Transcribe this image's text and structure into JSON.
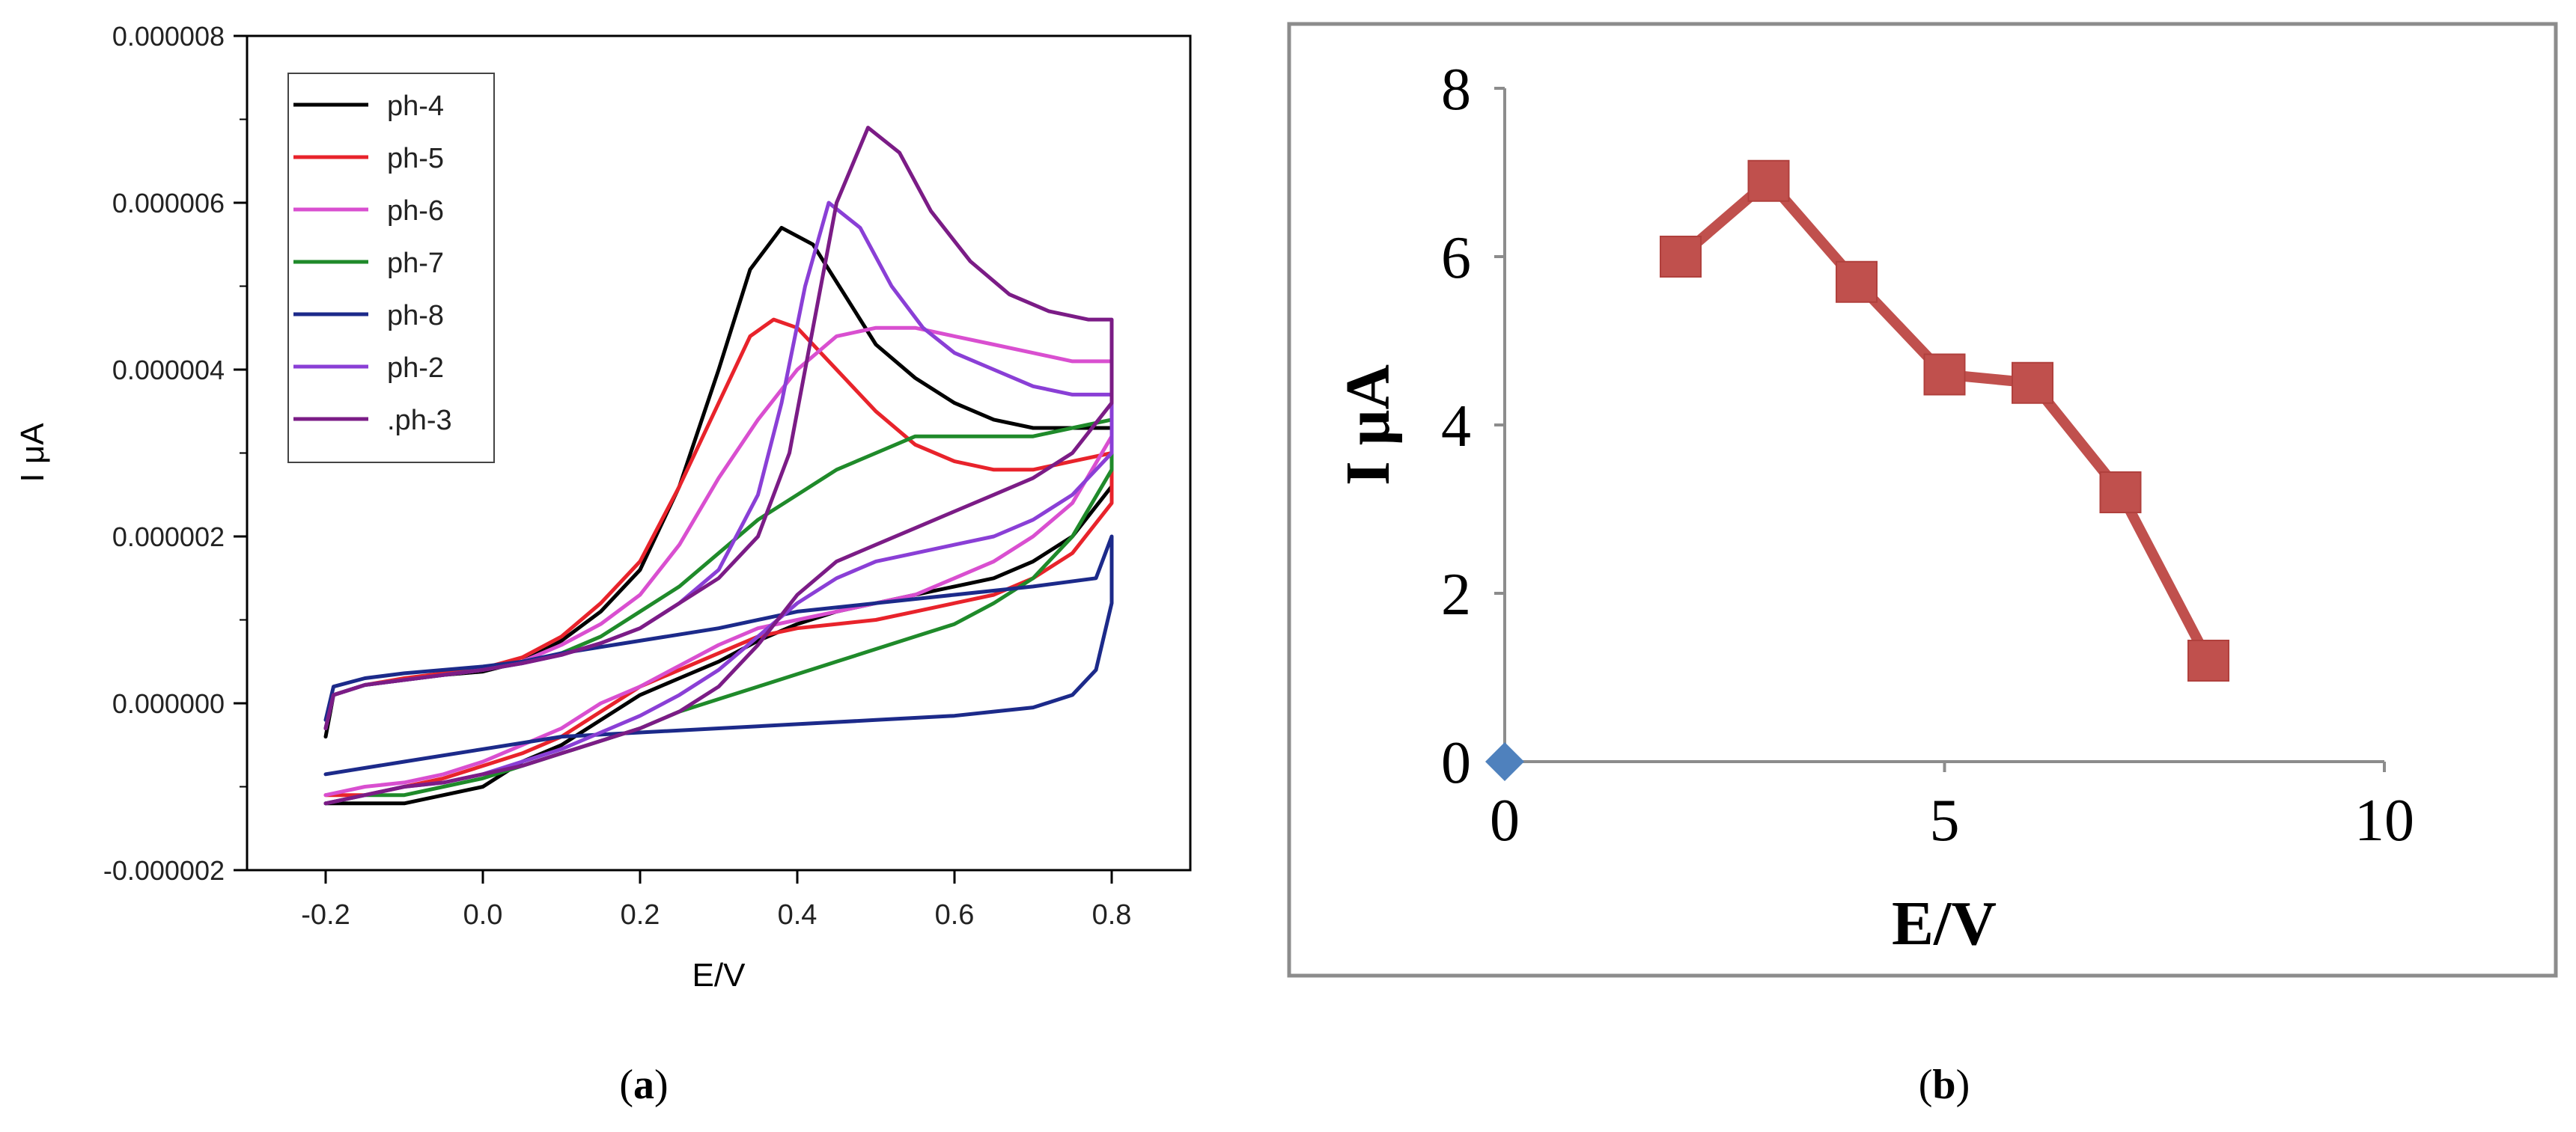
{
  "panels": {
    "a": {
      "label_open": "(",
      "label_letter": "a",
      "label_close": ")"
    },
    "b": {
      "label_open": "(",
      "label_letter": "b",
      "label_close": ")"
    }
  },
  "chart_data": [
    {
      "id": "a",
      "type": "line",
      "xlabel": "E/V",
      "ylabel": "I μA",
      "xlim": [
        -0.3,
        0.9
      ],
      "ylim": [
        -2e-06,
        8e-06
      ],
      "xticks": [
        "-0.2",
        "0.0",
        "0.2",
        "0.4",
        "0.6",
        "0.8"
      ],
      "xtick_values": [
        -0.2,
        0.0,
        0.2,
        0.4,
        0.6,
        0.8
      ],
      "yticks": [
        "-0.000002",
        "0.000000",
        "0.000002",
        "0.000004",
        "0.000006",
        "0.000008"
      ],
      "ytick_values": [
        -2e-06,
        0.0,
        2e-06,
        4e-06,
        6e-06,
        8e-06
      ],
      "legend_position": "top-left",
      "grid": false,
      "series": [
        {
          "name": "ph-4",
          "color": "#000000",
          "x": [
            -0.2,
            -0.19,
            -0.15,
            -0.1,
            -0.05,
            0,
            0.05,
            0.1,
            0.15,
            0.2,
            0.25,
            0.3,
            0.34,
            0.38,
            0.42,
            0.46,
            0.5,
            0.55,
            0.6,
            0.65,
            0.7,
            0.75,
            0.8,
            0.8,
            0.75,
            0.7,
            0.65,
            0.6,
            0.55,
            0.5,
            0.45,
            0.4,
            0.35,
            0.3,
            0.25,
            0.2,
            0.15,
            0.1,
            0.05,
            0,
            -0.05,
            -0.1,
            -0.15,
            -0.2
          ],
          "y": [
            -4e-07,
            1e-07,
            2.2e-07,
            2.8e-07,
            3.4e-07,
            3.8e-07,
            5e-07,
            7.5e-07,
            1.1e-06,
            1.6e-06,
            2.6e-06,
            4e-06,
            5.2e-06,
            5.7e-06,
            5.5e-06,
            4.9e-06,
            4.3e-06,
            3.9e-06,
            3.6e-06,
            3.4e-06,
            3.3e-06,
            3.3e-06,
            3.3e-06,
            2.6e-06,
            2e-06,
            1.7e-06,
            1.5e-06,
            1.4e-06,
            1.3e-06,
            1.2e-06,
            1.1e-06,
            9.5e-07,
            7.5e-07,
            5e-07,
            3e-07,
            1e-07,
            -2e-07,
            -5e-07,
            -7e-07,
            -1e-06,
            -1.1e-06,
            -1.2e-06,
            -1.2e-06,
            -1.2e-06
          ]
        },
        {
          "name": "ph-5",
          "color": "#e8232b",
          "x": [
            -0.2,
            -0.19,
            -0.15,
            -0.1,
            -0.05,
            0,
            0.05,
            0.1,
            0.15,
            0.2,
            0.25,
            0.3,
            0.34,
            0.37,
            0.4,
            0.45,
            0.5,
            0.55,
            0.6,
            0.65,
            0.7,
            0.75,
            0.8,
            0.8,
            0.75,
            0.7,
            0.65,
            0.6,
            0.55,
            0.5,
            0.45,
            0.4,
            0.35,
            0.3,
            0.25,
            0.2,
            0.15,
            0.1,
            0.05,
            0,
            -0.05,
            -0.1,
            -0.15,
            -0.2
          ],
          "y": [
            -3e-07,
            1e-07,
            2.2e-07,
            3e-07,
            3.6e-07,
            4.2e-07,
            5.5e-07,
            8e-07,
            1.2e-06,
            1.7e-06,
            2.6e-06,
            3.6e-06,
            4.4e-06,
            4.6e-06,
            4.5e-06,
            4e-06,
            3.5e-06,
            3.1e-06,
            2.9e-06,
            2.8e-06,
            2.8e-06,
            2.9e-06,
            3e-06,
            2.4e-06,
            1.8e-06,
            1.5e-06,
            1.3e-06,
            1.2e-06,
            1.1e-06,
            1e-06,
            9.5e-07,
            9e-07,
            8e-07,
            6e-07,
            4e-07,
            2e-07,
            -1e-07,
            -4e-07,
            -6e-07,
            -7.5e-07,
            -9e-07,
            -1e-06,
            -1.1e-06,
            -1.1e-06
          ]
        },
        {
          "name": "ph-6",
          "color": "#d94fd0",
          "x": [
            -0.2,
            -0.19,
            -0.15,
            -0.1,
            -0.05,
            0,
            0.05,
            0.1,
            0.15,
            0.2,
            0.25,
            0.3,
            0.35,
            0.4,
            0.45,
            0.5,
            0.55,
            0.6,
            0.65,
            0.7,
            0.75,
            0.8,
            0.8,
            0.75,
            0.7,
            0.65,
            0.6,
            0.55,
            0.5,
            0.45,
            0.4,
            0.35,
            0.3,
            0.25,
            0.2,
            0.15,
            0.1,
            0.05,
            0,
            -0.05,
            -0.1,
            -0.15,
            -0.2
          ],
          "y": [
            -3e-07,
            1e-07,
            2.2e-07,
            2.8e-07,
            3.4e-07,
            4e-07,
            5e-07,
            7e-07,
            9.5e-07,
            1.3e-06,
            1.9e-06,
            2.7e-06,
            3.4e-06,
            4e-06,
            4.4e-06,
            4.5e-06,
            4.5e-06,
            4.4e-06,
            4.3e-06,
            4.2e-06,
            4.1e-06,
            4.1e-06,
            3.2e-06,
            2.4e-06,
            2e-06,
            1.7e-06,
            1.5e-06,
            1.3e-06,
            1.2e-06,
            1.1e-06,
            1e-06,
            9e-07,
            7e-07,
            4.5e-07,
            2e-07,
            0.0,
            -3e-07,
            -5e-07,
            -7e-07,
            -8.5e-07,
            -9.5e-07,
            -1e-06,
            -1.1e-06
          ]
        },
        {
          "name": "ph-7",
          "color": "#1f8a2a",
          "x": [
            -0.2,
            -0.19,
            -0.15,
            -0.1,
            -0.05,
            0,
            0.05,
            0.1,
            0.15,
            0.2,
            0.25,
            0.3,
            0.35,
            0.4,
            0.45,
            0.5,
            0.55,
            0.6,
            0.65,
            0.7,
            0.75,
            0.8,
            0.8,
            0.75,
            0.7,
            0.65,
            0.6,
            0.55,
            0.5,
            0.45,
            0.4,
            0.35,
            0.3,
            0.25,
            0.2,
            0.15,
            0.1,
            0.05,
            0,
            -0.05,
            -0.1,
            -0.15,
            -0.2
          ],
          "y": [
            -3e-07,
            1e-07,
            2.2e-07,
            2.8e-07,
            3.4e-07,
            4e-07,
            4.8e-07,
            6e-07,
            8e-07,
            1.1e-06,
            1.4e-06,
            1.8e-06,
            2.2e-06,
            2.5e-06,
            2.8e-06,
            3e-06,
            3.2e-06,
            3.2e-06,
            3.2e-06,
            3.2e-06,
            3.3e-06,
            3.4e-06,
            2.8e-06,
            2e-06,
            1.5e-06,
            1.2e-06,
            9.5e-07,
            8e-07,
            6.5e-07,
            5e-07,
            3.5e-07,
            2e-07,
            5e-08,
            -1e-07,
            -3e-07,
            -4.5e-07,
            -6e-07,
            -7.5e-07,
            -9e-07,
            -1e-06,
            -1.1e-06,
            -1.1e-06,
            -1.2e-06
          ]
        },
        {
          "name": "ph-8",
          "color": "#1c2a8a",
          "x": [
            -0.2,
            -0.19,
            -0.15,
            -0.1,
            -0.05,
            0,
            0.05,
            0.1,
            0.2,
            0.3,
            0.4,
            0.5,
            0.6,
            0.7,
            0.78,
            0.8,
            0.8,
            0.78,
            0.75,
            0.7,
            0.65,
            0.6,
            0.5,
            0.4,
            0.3,
            0.2,
            0.1,
            0.0,
            -0.1,
            -0.2
          ],
          "y": [
            -2e-07,
            2e-07,
            3e-07,
            3.6e-07,
            4e-07,
            4.4e-07,
            5e-07,
            6e-07,
            7.5e-07,
            9e-07,
            1.1e-06,
            1.2e-06,
            1.3e-06,
            1.4e-06,
            1.5e-06,
            2e-06,
            1.2e-06,
            4e-07,
            1e-07,
            -5e-08,
            -1e-07,
            -1.5e-07,
            -2e-07,
            -2.5e-07,
            -3e-07,
            -3.5e-07,
            -4e-07,
            -5.5e-07,
            -7e-07,
            -8.5e-07
          ]
        },
        {
          "name": "ph-2",
          "color": "#8a3fd6",
          "x": [
            -0.2,
            -0.19,
            -0.15,
            -0.1,
            -0.05,
            0,
            0.05,
            0.1,
            0.15,
            0.2,
            0.25,
            0.3,
            0.35,
            0.38,
            0.41,
            0.44,
            0.48,
            0.52,
            0.56,
            0.6,
            0.65,
            0.7,
            0.75,
            0.8,
            0.8,
            0.75,
            0.7,
            0.65,
            0.6,
            0.55,
            0.5,
            0.45,
            0.4,
            0.35,
            0.3,
            0.25,
            0.2,
            0.15,
            0.1,
            0.05,
            0,
            -0.05,
            -0.1,
            -0.15,
            -0.2
          ],
          "y": [
            -3e-07,
            1e-07,
            2.2e-07,
            2.8e-07,
            3.4e-07,
            4e-07,
            4.8e-07,
            5.8e-07,
            7.2e-07,
            9e-07,
            1.2e-06,
            1.6e-06,
            2.5e-06,
            3.6e-06,
            5e-06,
            6e-06,
            5.7e-06,
            5e-06,
            4.5e-06,
            4.2e-06,
            4e-06,
            3.8e-06,
            3.7e-06,
            3.7e-06,
            3e-06,
            2.5e-06,
            2.2e-06,
            2e-06,
            1.9e-06,
            1.8e-06,
            1.7e-06,
            1.5e-06,
            1.2e-06,
            8e-07,
            4e-07,
            1e-07,
            -1.5e-07,
            -3.5e-07,
            -5.5e-07,
            -7e-07,
            -8.5e-07,
            -9.5e-07,
            -1e-06,
            -1.1e-06,
            -1.2e-06
          ]
        },
        {
          "name": ".ph-3",
          "color": "#7b1c86",
          "x": [
            -0.2,
            -0.19,
            -0.15,
            -0.1,
            -0.05,
            0,
            0.05,
            0.1,
            0.15,
            0.2,
            0.25,
            0.3,
            0.35,
            0.39,
            0.42,
            0.45,
            0.49,
            0.53,
            0.57,
            0.62,
            0.67,
            0.72,
            0.77,
            0.8,
            0.8,
            0.75,
            0.7,
            0.65,
            0.6,
            0.55,
            0.5,
            0.45,
            0.4,
            0.35,
            0.3,
            0.25,
            0.2,
            0.15,
            0.1,
            0.05,
            0,
            -0.05,
            -0.1,
            -0.15,
            -0.2
          ],
          "y": [
            -3e-07,
            1e-07,
            2.2e-07,
            2.8e-07,
            3.4e-07,
            4e-07,
            4.8e-07,
            5.8e-07,
            7.2e-07,
            9e-07,
            1.2e-06,
            1.5e-06,
            2e-06,
            3e-06,
            4.5e-06,
            6e-06,
            6.9e-06,
            6.6e-06,
            5.9e-06,
            5.3e-06,
            4.9e-06,
            4.7e-06,
            4.6e-06,
            4.6e-06,
            3.6e-06,
            3e-06,
            2.7e-06,
            2.5e-06,
            2.3e-06,
            2.1e-06,
            1.9e-06,
            1.7e-06,
            1.3e-06,
            7e-07,
            2e-07,
            -1e-07,
            -3e-07,
            -4.5e-07,
            -6e-07,
            -7.5e-07,
            -8.5e-07,
            -9.5e-07,
            -1e-06,
            -1.1e-06,
            -1.2e-06
          ]
        }
      ]
    },
    {
      "id": "b",
      "type": "line",
      "xlabel": "E/V",
      "ylabel": "I μA",
      "xlim": [
        0,
        10
      ],
      "ylim": [
        0,
        8
      ],
      "xticks": [
        "0",
        "5",
        "10"
      ],
      "xtick_values": [
        0,
        5,
        10
      ],
      "yticks": [
        "0",
        "2",
        "4",
        "6",
        "8"
      ],
      "ytick_values": [
        0,
        2,
        4,
        6,
        8
      ],
      "grid": false,
      "series": [
        {
          "color": "#c0504d",
          "marker": "square",
          "x": [
            2,
            3,
            4,
            5,
            6,
            7,
            8
          ],
          "y": [
            6.0,
            6.9,
            5.7,
            4.6,
            4.5,
            3.2,
            1.2
          ]
        },
        {
          "color": "#4f81bd",
          "marker": "diamond",
          "x": [
            0
          ],
          "y": [
            0
          ]
        }
      ]
    }
  ]
}
